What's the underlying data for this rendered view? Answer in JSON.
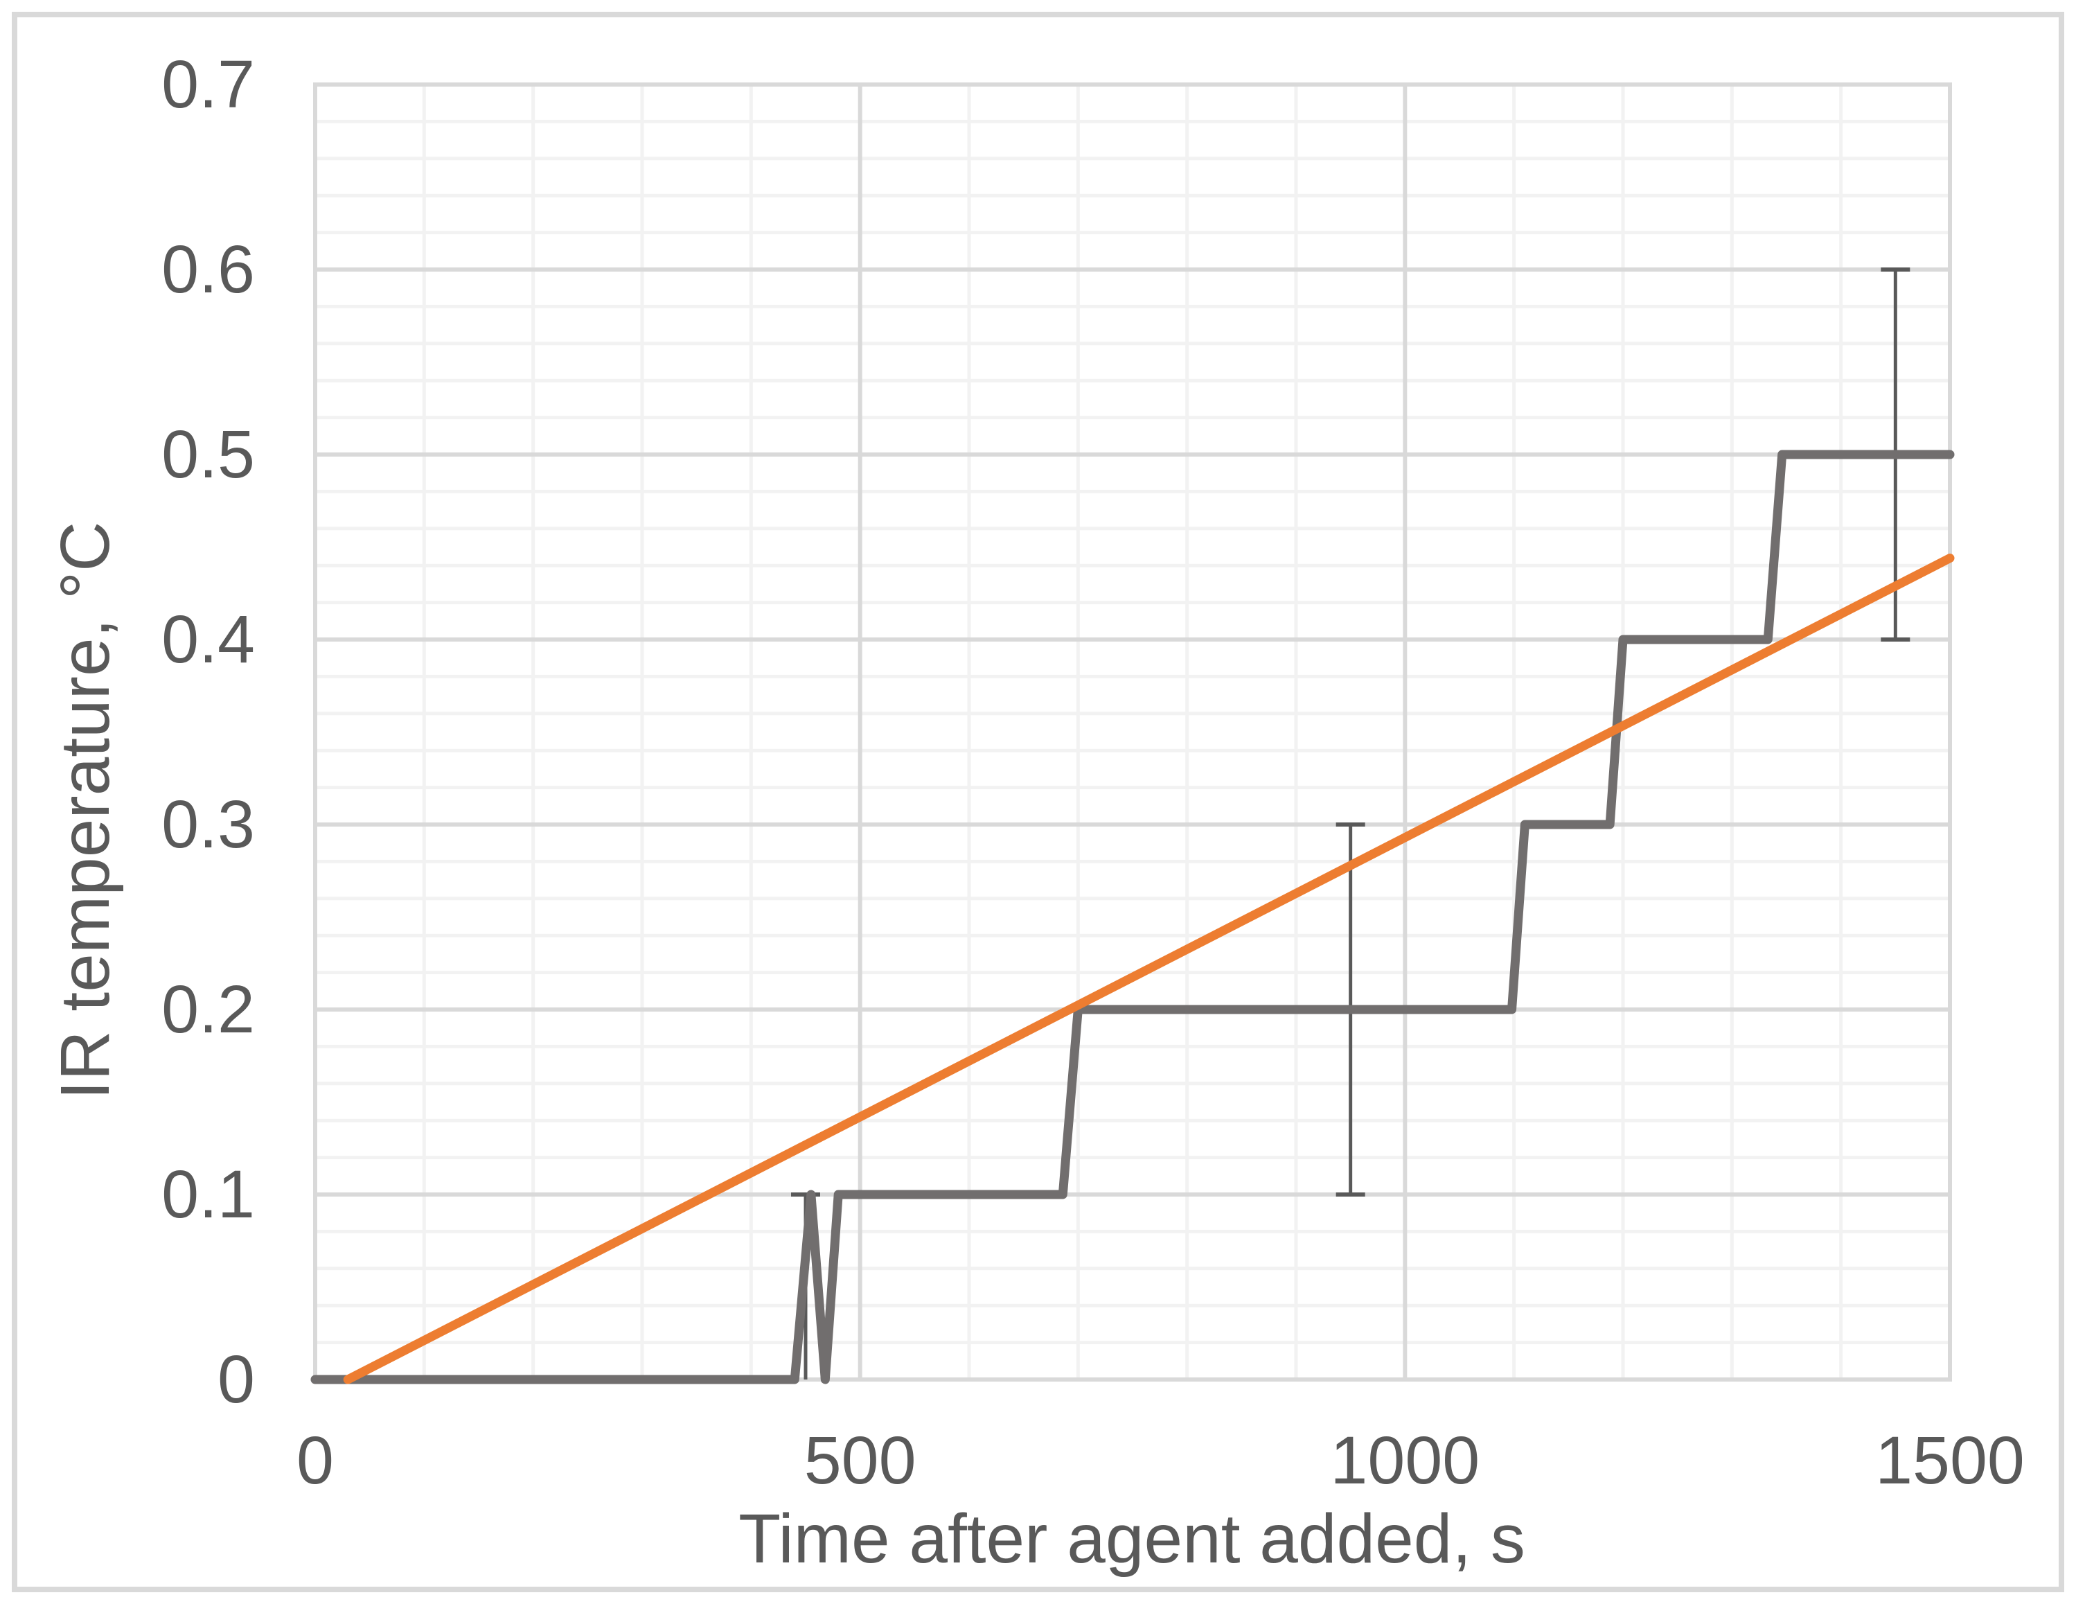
{
  "figure": {
    "background_color": "#FFFFFF",
    "frame_border_color": "#D9D9D9"
  },
  "chart_data": {
    "type": "line",
    "title": "",
    "xlabel": "Time after agent added, s",
    "ylabel": "IR temperature, °C",
    "xlim": [
      0,
      1500
    ],
    "ylim": [
      0,
      0.7
    ],
    "x_ticks": [
      "0",
      "500",
      "1000",
      "1500"
    ],
    "x_tick_values": [
      0,
      500,
      1000,
      1500
    ],
    "y_ticks": [
      "0",
      "0.1",
      "0.2",
      "0.3",
      "0.4",
      "0.5",
      "0.6",
      "0.7"
    ],
    "y_tick_values": [
      0,
      0.1,
      0.2,
      0.3,
      0.4,
      0.5,
      0.6,
      0.7
    ],
    "x_major_unit": 500,
    "x_minor_unit": 100,
    "y_major_unit": 0.1,
    "y_minor_unit": 0.02,
    "grid": {
      "major_color": "#D9D9D9",
      "minor_color": "#F2F2F2",
      "major_width": 6,
      "minor_width": 5
    },
    "text_color": "#595959",
    "legend": "none",
    "series": [
      {
        "id": "series1",
        "style": "step",
        "color": "#716E6E",
        "stroke_width": 13,
        "points": [
          [
            0,
            0
          ],
          [
            440,
            0
          ],
          [
            455,
            0.1
          ],
          [
            468,
            0
          ],
          [
            480,
            0.1
          ],
          [
            686,
            0.1
          ],
          [
            700,
            0.2
          ],
          [
            1098,
            0.2
          ],
          [
            1110,
            0.3
          ],
          [
            1188,
            0.3
          ],
          [
            1200,
            0.4
          ],
          [
            1333,
            0.4
          ],
          [
            1346,
            0.5
          ],
          [
            1500,
            0.5
          ]
        ]
      },
      {
        "id": "series2",
        "style": "straight",
        "color": "#ED7D31",
        "stroke_width": 13,
        "points": [
          [
            30,
            0
          ],
          [
            1500,
            0.444
          ]
        ]
      }
    ],
    "error_bars": {
      "color": "#595959",
      "line_width": 5,
      "cap_width": 42,
      "cap_thickness": 6,
      "magnitude": 0.1,
      "bars": [
        {
          "x": 450,
          "y_top": 0.1,
          "y_bottom": 0,
          "cap_top": true,
          "cap_bottom": false
        },
        {
          "x": 950,
          "y_top": 0.3,
          "y_bottom": 0.1,
          "cap_top": true,
          "cap_bottom": true
        },
        {
          "x": 1450,
          "y_top": 0.6,
          "y_bottom": 0.4,
          "cap_top": true,
          "cap_bottom": true
        }
      ]
    }
  }
}
